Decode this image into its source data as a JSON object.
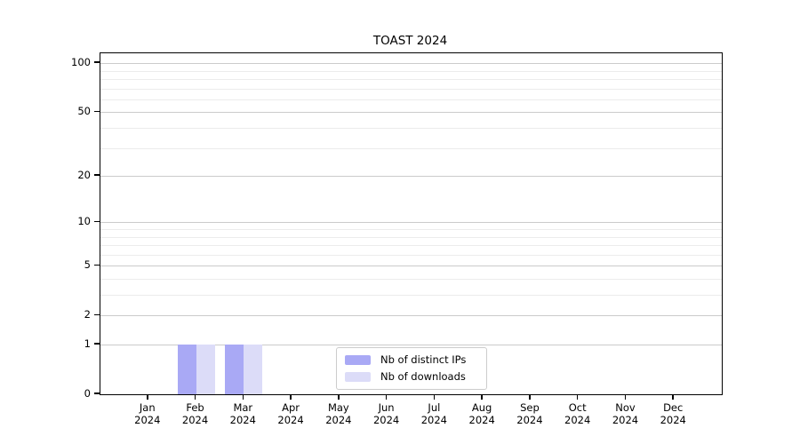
{
  "chart_data": {
    "type": "bar",
    "title": "TOAST 2024",
    "months": [
      "Jan",
      "Feb",
      "Mar",
      "Apr",
      "May",
      "Jun",
      "Jul",
      "Aug",
      "Sep",
      "Oct",
      "Nov",
      "Dec"
    ],
    "year_label": "2024",
    "series": [
      {
        "name": "Nb of distinct IPs",
        "color": "#a9a9f5",
        "values": [
          0,
          1,
          1,
          0,
          0,
          0,
          0,
          0,
          0,
          0,
          0,
          0
        ]
      },
      {
        "name": "Nb of downloads",
        "color": "#dcdcf8",
        "values": [
          0,
          1,
          1,
          0,
          0,
          0,
          0,
          0,
          0,
          0,
          0,
          0
        ]
      }
    ],
    "y_axis": {
      "scale": "log10(1+y)",
      "major_ticks": [
        0,
        1,
        2,
        5,
        10,
        20,
        50,
        100
      ],
      "minor_ticks": [
        3,
        4,
        6,
        7,
        8,
        9,
        30,
        40,
        60,
        70,
        80,
        90
      ],
      "max_value": 115
    },
    "x_axis": {
      "label_format": "month over year"
    },
    "grid": {
      "major_color": "#cbcbcb",
      "minor_color": "#ececec"
    },
    "legend": {
      "position": "inside-bottom-center"
    }
  }
}
